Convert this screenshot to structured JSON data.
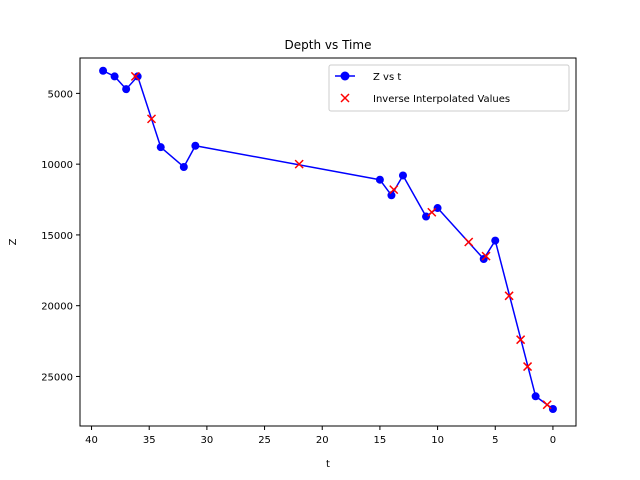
{
  "chart_data": {
    "type": "line",
    "title": "Depth vs Time",
    "xlabel": "t",
    "ylabel": "Z",
    "xlim": [
      41,
      -2
    ],
    "ylim": [
      28500,
      2500
    ],
    "x_inverted": true,
    "y_inverted": true,
    "xticks": [
      40,
      35,
      30,
      25,
      20,
      15,
      10,
      5,
      0
    ],
    "yticks": [
      5000,
      10000,
      15000,
      20000,
      25000
    ],
    "grid": false,
    "legend_position": "top-right",
    "series": [
      {
        "name": "Z vs t",
        "kind": "line-marker",
        "color": "#0000ff",
        "marker": "circle",
        "x": [
          39,
          38,
          37,
          36,
          34,
          32,
          31,
          15,
          14,
          13,
          11,
          10,
          6,
          5,
          1.5,
          0
        ],
        "y": [
          3400,
          3800,
          4700,
          3800,
          8800,
          10200,
          8700,
          11100,
          12200,
          10800,
          13700,
          13100,
          16700,
          15400,
          26400,
          27300
        ]
      },
      {
        "name": "Inverse Interpolated Values",
        "kind": "scatter",
        "color": "#ff0000",
        "marker": "x",
        "x": [
          36.2,
          34.8,
          22,
          13.8,
          10.5,
          7.3,
          5.8,
          3.8,
          2.8,
          2.2,
          0.5
        ],
        "y": [
          3800,
          6800,
          10000,
          11800,
          13400,
          15500,
          16500,
          19300,
          22400,
          24300,
          27000
        ]
      }
    ]
  }
}
